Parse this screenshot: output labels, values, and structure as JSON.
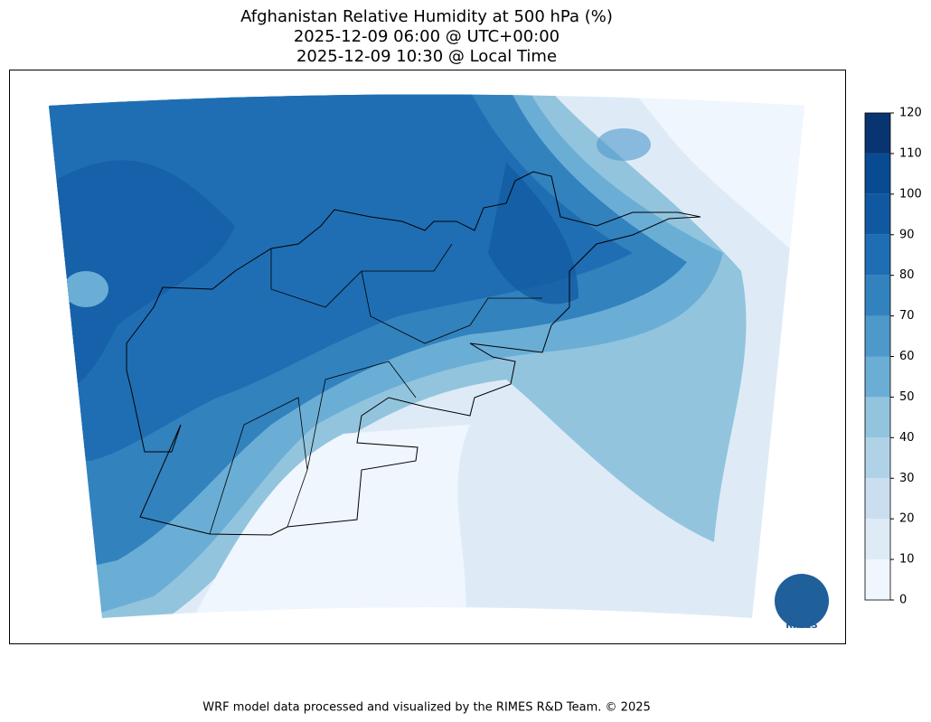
{
  "title": [
    "Afghanistan Relative Humidity at 500 hPa (%)",
    "2025-12-09 06:00 @ UTC+00:00",
    "2025-12-09 10:30 @ Local Time"
  ],
  "colorbar": {
    "ticks": [
      0,
      10,
      20,
      30,
      40,
      50,
      60,
      70,
      80,
      90,
      100,
      110,
      120
    ],
    "colors": [
      "#eff6fd",
      "#deebf7",
      "#cadef0",
      "#b0d2e7",
      "#93c4de",
      "#6aaed6",
      "#4d99ca",
      "#3282be",
      "#1f6eb3",
      "#1059a1",
      "#084b93",
      "#083471"
    ]
  },
  "logo_text": "RIMES",
  "footer": "WRF model data processed and visualized by the RIMES R&D Team. © 2025"
}
